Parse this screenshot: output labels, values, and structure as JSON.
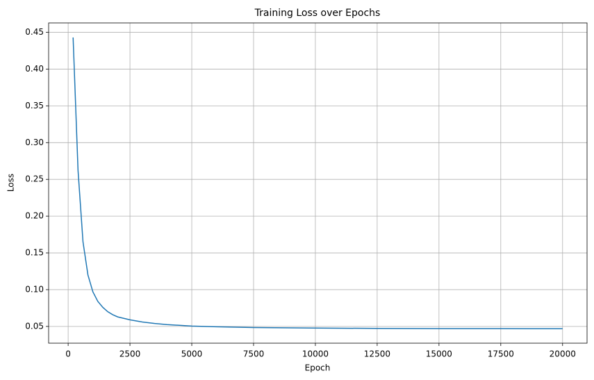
{
  "chart_data": {
    "type": "line",
    "title": "Training Loss over Epochs",
    "x_label": "Epoch",
    "y_label": "Loss",
    "x": [
      200,
      400,
      600,
      800,
      1000,
      1200,
      1400,
      1600,
      1800,
      2000,
      2500,
      3000,
      3500,
      4000,
      5000,
      6000,
      7500,
      10000,
      12500,
      15000,
      17500,
      20000
    ],
    "series": [
      {
        "name": "Loss",
        "color": "#1f77b4",
        "values": [
          0.443,
          0.262,
          0.165,
          0.12,
          0.097,
          0.084,
          0.076,
          0.07,
          0.066,
          0.063,
          0.059,
          0.056,
          0.054,
          0.0525,
          0.0505,
          0.0495,
          0.0485,
          0.0477,
          0.0473,
          0.0471,
          0.047,
          0.0469
        ]
      }
    ],
    "xlim": [
      -790,
      20990
    ],
    "ylim": [
      0.0272,
      0.4628
    ],
    "xticks": [
      0,
      2500,
      5000,
      7500,
      10000,
      12500,
      15000,
      17500,
      20000
    ],
    "yticks": [
      0.05,
      {
        "value": 0.1,
        "label": "0.10"
      },
      0.15,
      {
        "value": 0.2,
        "label": "0.20"
      },
      0.25,
      {
        "value": 0.3,
        "label": "0.30"
      },
      0.35,
      {
        "value": 0.4,
        "label": "0.40"
      },
      0.45
    ],
    "grid": true
  }
}
